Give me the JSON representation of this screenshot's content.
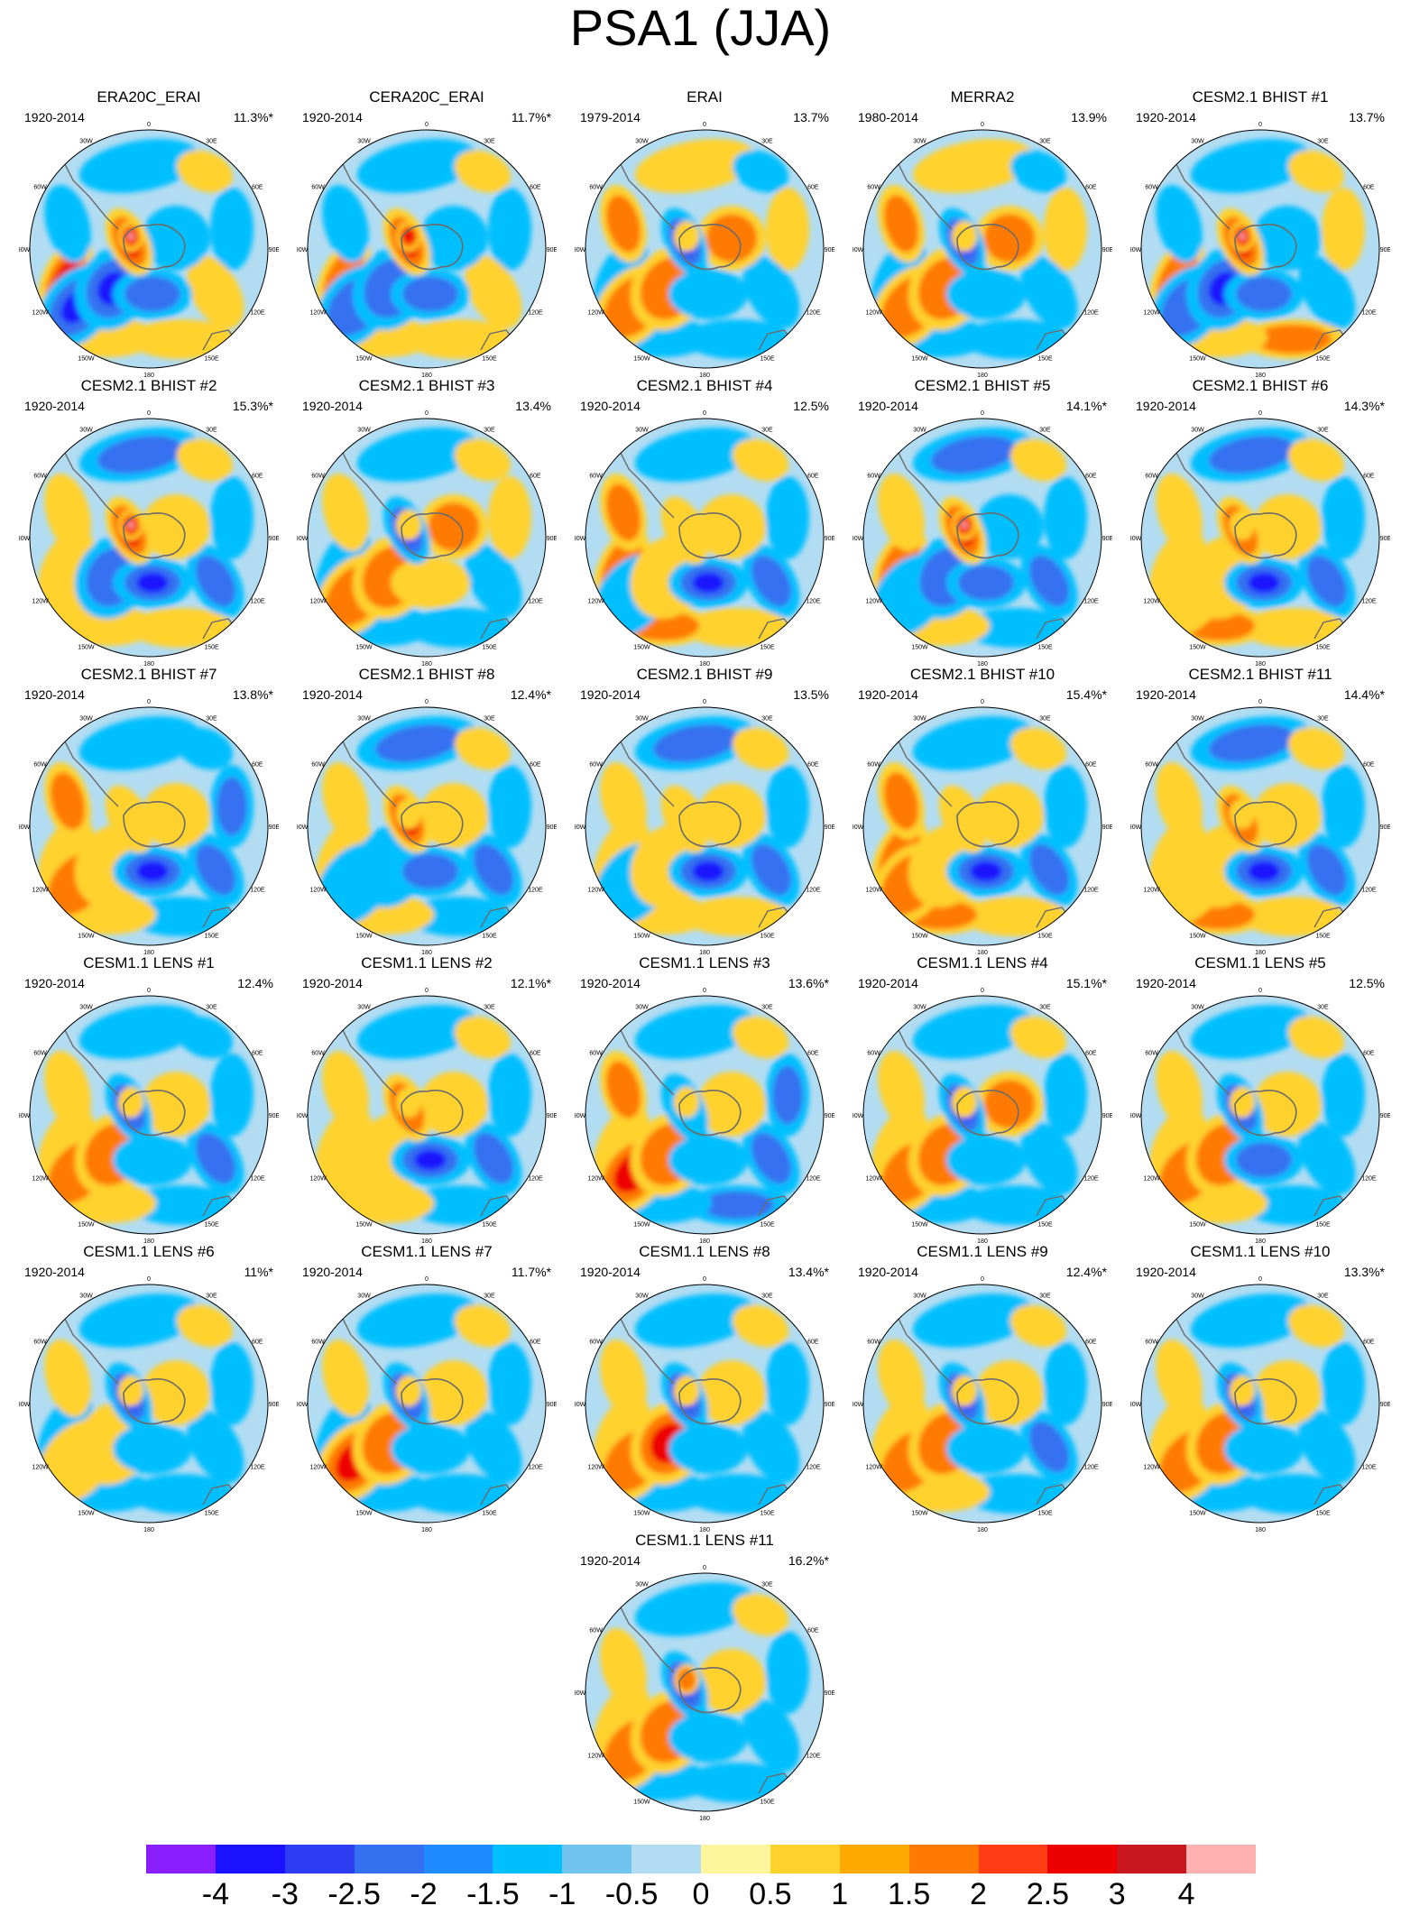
{
  "title": "PSA1 (JJA)",
  "colors": [
    "#8a1eff",
    "#1a12ff",
    "#2d3ef2",
    "#3471f0",
    "#1e8cff",
    "#00bfff",
    "#70c4ef",
    "#b2dcf2",
    "#fff59c",
    "#ffd22e",
    "#ffaa00",
    "#ff7a00",
    "#ff3c14",
    "#ee0000",
    "#c8181e",
    "#ffb0b0"
  ],
  "colorbar_labels": [
    "-4",
    "-3",
    "-2.5",
    "-2",
    "-1.5",
    "-1",
    "-0.5",
    "0",
    "0.5",
    "1",
    "1.5",
    "2",
    "2.5",
    "3",
    "4"
  ],
  "map_labels": [
    "0",
    "30E",
    "60E",
    "90E",
    "120E",
    "150E",
    "180",
    "150W",
    "120W",
    "90W",
    "60W",
    "30W"
  ],
  "panels": [
    {
      "title": "ERA20C_ERAI",
      "period": "1920-2014",
      "pct": "11.3%*",
      "pattern": [
        -1,
        1,
        -1,
        1,
        1,
        1,
        3,
        -1,
        -3,
        -3,
        -2,
        -1,
        3,
        4
      ]
    },
    {
      "title": "CERA20C_ERAI",
      "period": "1920-2014",
      "pct": "11.7%*",
      "pattern": [
        -1,
        1,
        -1,
        1,
        1,
        1,
        2,
        -1,
        -2,
        -2,
        -2,
        -1,
        3,
        3
      ]
    },
    {
      "title": "ERAI",
      "period": "1979-2014",
      "pct": "13.7%",
      "pattern": [
        1,
        -1,
        1,
        -1,
        -1,
        -1,
        -1,
        2,
        2,
        2,
        -1,
        2,
        -3,
        1
      ]
    },
    {
      "title": "MERRA2",
      "period": "1980-2014",
      "pct": "13.9%",
      "pattern": [
        1,
        -1,
        1,
        -1,
        -1,
        -1,
        -1,
        2,
        2,
        2,
        -1,
        2,
        -3,
        1
      ]
    },
    {
      "title": "CESM2.1 BHIST #1",
      "period": "1920-2014",
      "pct": "13.7%",
      "pattern": [
        -1,
        1,
        1,
        -1,
        2,
        1,
        2,
        -1,
        -2,
        -3,
        -2,
        -1,
        3,
        4
      ]
    },
    {
      "title": "CESM2.1 BHIST #2",
      "period": "1920-2014",
      "pct": "15.3%*",
      "pattern": [
        -2,
        1,
        -1,
        -2,
        1,
        1,
        1,
        1,
        1,
        -2,
        -3,
        1,
        3,
        4
      ]
    },
    {
      "title": "CESM2.1 BHIST #3",
      "period": "1920-2014",
      "pct": "13.4%",
      "pattern": [
        -1,
        1,
        1,
        -1,
        -1,
        -1,
        -1,
        1,
        2,
        2,
        1,
        2,
        -3,
        1
      ]
    },
    {
      "title": "CESM2.1 BHIST #4",
      "period": "1920-2014",
      "pct": "12.5%",
      "pattern": [
        -1,
        1,
        -1,
        -2,
        1,
        2,
        2,
        2,
        -1,
        1,
        -3,
        1,
        1,
        1
      ]
    },
    {
      "title": "CESM2.1 BHIST #5",
      "period": "1920-2014",
      "pct": "14.1%*",
      "pattern": [
        -2,
        1,
        -1,
        -2,
        -1,
        1,
        2,
        1,
        -1,
        -2,
        -2,
        -1,
        3,
        4
      ]
    },
    {
      "title": "CESM2.1 BHIST #6",
      "period": "1920-2014",
      "pct": "14.3%*",
      "pattern": [
        -2,
        1,
        -1,
        -2,
        1,
        2,
        1,
        1,
        1,
        1,
        -3,
        1,
        2,
        1
      ]
    },
    {
      "title": "CESM2.1 BHIST #7",
      "period": "1920-2014",
      "pct": "13.8%*",
      "pattern": [
        -1,
        -1,
        -2,
        -2,
        -1,
        1,
        1,
        2,
        2,
        1,
        -3,
        1,
        1,
        1
      ]
    },
    {
      "title": "CESM2.1 BHIST #8",
      "period": "1920-2014",
      "pct": "12.4%*",
      "pattern": [
        -2,
        1,
        -1,
        -2,
        -1,
        1,
        1,
        1,
        -1,
        -1,
        -2,
        1,
        3,
        1
      ]
    },
    {
      "title": "CESM2.1 BHIST #9",
      "period": "1920-2014",
      "pct": "13.5%",
      "pattern": [
        -2,
        1,
        -1,
        -2,
        1,
        1,
        1,
        1,
        -1,
        1,
        -3,
        1,
        1,
        1
      ]
    },
    {
      "title": "CESM2.1 BHIST #10",
      "period": "1920-2014",
      "pct": "15.4%*",
      "pattern": [
        -1,
        1,
        -1,
        -2,
        1,
        2,
        2,
        2,
        2,
        1,
        -3,
        1,
        1,
        1
      ]
    },
    {
      "title": "CESM2.1 BHIST #11",
      "period": "1920-2014",
      "pct": "14.4%*",
      "pattern": [
        -2,
        1,
        -1,
        -2,
        1,
        2,
        1,
        1,
        1,
        1,
        -3,
        1,
        2,
        1
      ]
    },
    {
      "title": "CESM1.1 LENS #1",
      "period": "1920-2014",
      "pct": "12.4%",
      "pattern": [
        -1,
        -1,
        -1,
        -2,
        -1,
        1,
        1,
        1,
        2,
        2,
        -1,
        1,
        -2,
        1
      ]
    },
    {
      "title": "CESM1.1 LENS #2",
      "period": "1920-2014",
      "pct": "12.1%*",
      "pattern": [
        -1,
        1,
        -1,
        -2,
        -1,
        1,
        1,
        1,
        1,
        1,
        -3,
        1,
        2,
        1
      ]
    },
    {
      "title": "CESM1.1 LENS #3",
      "period": "1920-2014",
      "pct": "13.6%*",
      "pattern": [
        -1,
        1,
        -2,
        -2,
        -2,
        -1,
        1,
        2,
        3,
        2,
        -1,
        1,
        -1,
        1
      ]
    },
    {
      "title": "CESM1.1 LENS #4",
      "period": "1920-2014",
      "pct": "15.1%*",
      "pattern": [
        -1,
        1,
        -1,
        -1,
        -1,
        -1,
        1,
        1,
        2,
        2,
        -1,
        2,
        -3,
        1
      ]
    },
    {
      "title": "CESM1.1 LENS #5",
      "period": "1920-2014",
      "pct": "12.5%",
      "pattern": [
        -1,
        1,
        -1,
        -1,
        -1,
        1,
        1,
        1,
        2,
        2,
        -2,
        1,
        -2,
        1
      ]
    },
    {
      "title": "CESM1.1 LENS #6",
      "period": "1920-2014",
      "pct": "11%*",
      "pattern": [
        -1,
        1,
        -1,
        -1,
        -1,
        -1,
        -1,
        1,
        1,
        1,
        -1,
        1,
        -3,
        1
      ]
    },
    {
      "title": "CESM1.1 LENS #7",
      "period": "1920-2014",
      "pct": "11.7%*",
      "pattern": [
        -1,
        1,
        -1,
        -1,
        -1,
        -1,
        -1,
        1,
        3,
        2,
        -1,
        1,
        -2,
        1
      ]
    },
    {
      "title": "CESM1.1 LENS #8",
      "period": "1920-2014",
      "pct": "13.4%*",
      "pattern": [
        -1,
        1,
        -1,
        -1,
        -1,
        -1,
        1,
        1,
        2,
        3,
        -1,
        1,
        -3,
        1
      ]
    },
    {
      "title": "CESM1.1 LENS #9",
      "period": "1920-2014",
      "pct": "12.4%*",
      "pattern": [
        -1,
        1,
        -1,
        -2,
        -1,
        1,
        1,
        1,
        2,
        2,
        -1,
        1,
        -3,
        1
      ]
    },
    {
      "title": "CESM1.1 LENS #10",
      "period": "1920-2014",
      "pct": "13.3%*",
      "pattern": [
        -1,
        1,
        -1,
        -1,
        -1,
        -1,
        1,
        1,
        2,
        2,
        -1,
        1,
        -3,
        1
      ]
    },
    {
      "title": "CESM1.1 LENS #11",
      "period": "1920-2014",
      "pct": "16.2%*",
      "pattern": [
        -1,
        1,
        -1,
        -1,
        -1,
        -1,
        1,
        1,
        2,
        2,
        -1,
        1,
        -3,
        2
      ]
    }
  ]
}
